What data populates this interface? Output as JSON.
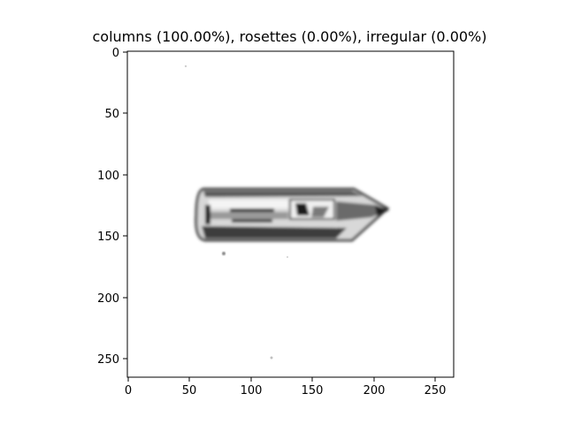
{
  "figure": {
    "title": "columns (100.00%), rosettes (0.00%), irregular (0.00%)",
    "image_description_icon": "ice-crystal-column-image"
  },
  "axes": {
    "x_ticks": [
      "0",
      "50",
      "100",
      "150",
      "200",
      "250"
    ],
    "y_ticks": [
      "0",
      "50",
      "100",
      "150",
      "200",
      "250"
    ],
    "x_range": [
      0,
      265
    ],
    "y_range": [
      265,
      0
    ]
  },
  "colors": {
    "frame": "#000000",
    "crystal_dark": "#1a1a1a",
    "crystal_mid": "#6a6a6a",
    "crystal_light": "#d0d0d0"
  }
}
